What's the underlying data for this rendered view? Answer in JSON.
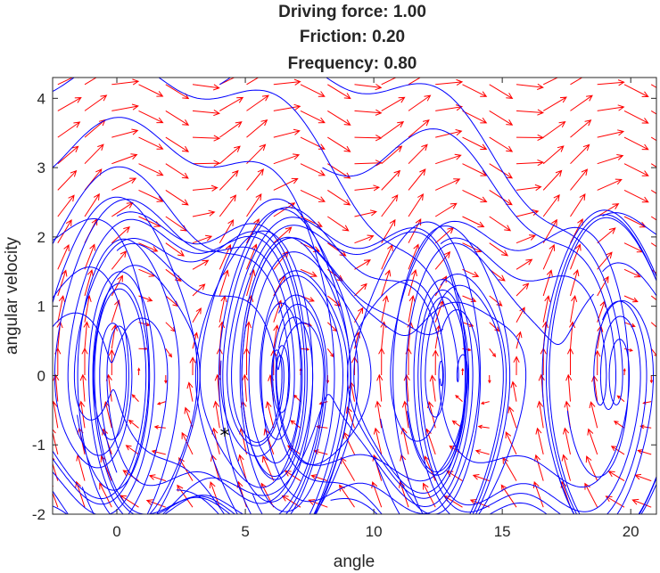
{
  "chart_data": {
    "type": "line",
    "title_lines": [
      "Driving force: 1.00",
      "Friction: 0.20",
      "Frequency: 0.80"
    ],
    "xlabel": "angle",
    "ylabel": "angular velocity",
    "xlim": [
      -2.5,
      21
    ],
    "ylim": [
      -2,
      4.3
    ],
    "xticks": [
      0,
      5,
      10,
      15,
      20
    ],
    "yticks": [
      -2,
      -1,
      0,
      1,
      2,
      3,
      4
    ],
    "grid": false,
    "legend": "none",
    "series": [
      {
        "kind": "vector-field",
        "color": "#ff0000",
        "x_range": [
          -2.3,
          20.8
        ],
        "y_range": [
          -1.9,
          4.2
        ],
        "nx": 23,
        "ny": 17,
        "force": 1.0,
        "friction": 0.2,
        "frequency": 0.8,
        "phase": 0.75
      },
      {
        "kind": "trajectories",
        "color": "#0000ff",
        "force": 1.0,
        "friction": 0.2,
        "frequency": 0.8,
        "initial_states": [
          [
            -2.5,
            4.1
          ],
          [
            -2.5,
            3.0
          ],
          [
            -2.5,
            1.9
          ],
          [
            -2.5,
            1.05
          ],
          [
            -2.5,
            -1.2
          ],
          [
            -2.5,
            -1.85
          ],
          [
            0.0,
            2.3
          ],
          [
            0.0,
            1.8
          ],
          [
            0.0,
            -1.4
          ],
          [
            6.3,
            1.35
          ],
          [
            6.3,
            0.9
          ],
          [
            6.3,
            0.4
          ],
          [
            12.6,
            1.9
          ],
          [
            12.6,
            1.3
          ],
          [
            12.6,
            0.6
          ],
          [
            18.9,
            2.3
          ],
          [
            18.9,
            1.5
          ],
          [
            18.9,
            0.8
          ],
          [
            4.0,
            4.2
          ],
          [
            8.0,
            3.0
          ]
        ],
        "duration": 30
      },
      {
        "kind": "marker",
        "symbol": "*",
        "color": "#000000",
        "x": 4.2,
        "y": -0.85
      }
    ]
  }
}
